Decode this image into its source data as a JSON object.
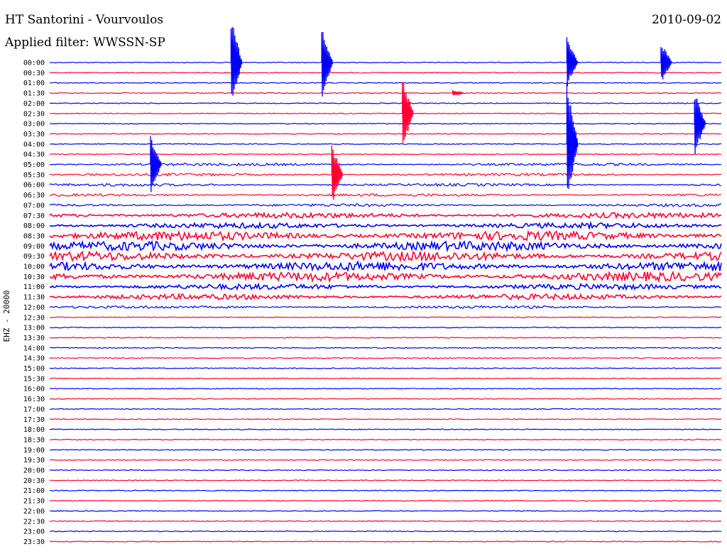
{
  "header": {
    "station_title": "HT Santorini - Vourvoulos",
    "filter_text": "Applied filter: WWSSN-SP",
    "date": "2010-09-02"
  },
  "channel_label": "EHZ - 20000",
  "colors": {
    "even_trace": "#0000ff",
    "odd_trace": "#ff0033",
    "background": "#ffffff"
  },
  "chart_data": {
    "type": "line",
    "title": "HT Santorini - Vourvoulos",
    "subtitle": "Applied filter: WWSSN-SP",
    "ylabel": "EHZ - 20000",
    "x_span_minutes_per_line": 30,
    "row_labels": [
      "00:00",
      "00:30",
      "01:00",
      "01:30",
      "02:00",
      "02:30",
      "03:00",
      "03:30",
      "04:00",
      "04:30",
      "05:00",
      "05:30",
      "06:00",
      "06:30",
      "07:00",
      "07:30",
      "08:00",
      "08:30",
      "09:00",
      "09:30",
      "10:00",
      "10:30",
      "11:00",
      "11:30",
      "12:00",
      "12:30",
      "13:00",
      "13:30",
      "14:00",
      "14:30",
      "15:00",
      "15:30",
      "16:00",
      "16:30",
      "17:00",
      "17:30",
      "18:00",
      "18:30",
      "19:00",
      "19:30",
      "20:00",
      "20:30",
      "21:00",
      "21:30",
      "22:00",
      "22:30",
      "23:00",
      "23:30"
    ],
    "noise_level": [
      0,
      0,
      0,
      0,
      0,
      0,
      0,
      0,
      0,
      0,
      1,
      1,
      1,
      1,
      1,
      2,
      2,
      3,
      3,
      3,
      3,
      3,
      2,
      2,
      1,
      0,
      0,
      0,
      0,
      0,
      0,
      0,
      0,
      0,
      0,
      0,
      0,
      0,
      0,
      0,
      0,
      0,
      0,
      0,
      0,
      0,
      0,
      0
    ],
    "events": [
      {
        "time": "00:00",
        "x_frac": 0.27,
        "amp_rows": 4.5
      },
      {
        "time": "00:00",
        "x_frac": 0.405,
        "amp_rows": 3.6
      },
      {
        "time": "00:00",
        "x_frac": 0.77,
        "amp_rows": 2.5
      },
      {
        "time": "00:00",
        "x_frac": 0.91,
        "amp_rows": 2
      },
      {
        "time": "01:30",
        "x_frac": 0.6,
        "amp_rows": 0.3
      },
      {
        "time": "02:30",
        "x_frac": 0.525,
        "amp_rows": 3.5
      },
      {
        "time": "03:00",
        "x_frac": 0.96,
        "amp_rows": 3.2
      },
      {
        "time": "04:00",
        "x_frac": 0.77,
        "amp_rows": 6
      },
      {
        "time": "05:00",
        "x_frac": 0.15,
        "amp_rows": 3
      },
      {
        "time": "05:30",
        "x_frac": 0.42,
        "amp_rows": 3
      }
    ]
  }
}
